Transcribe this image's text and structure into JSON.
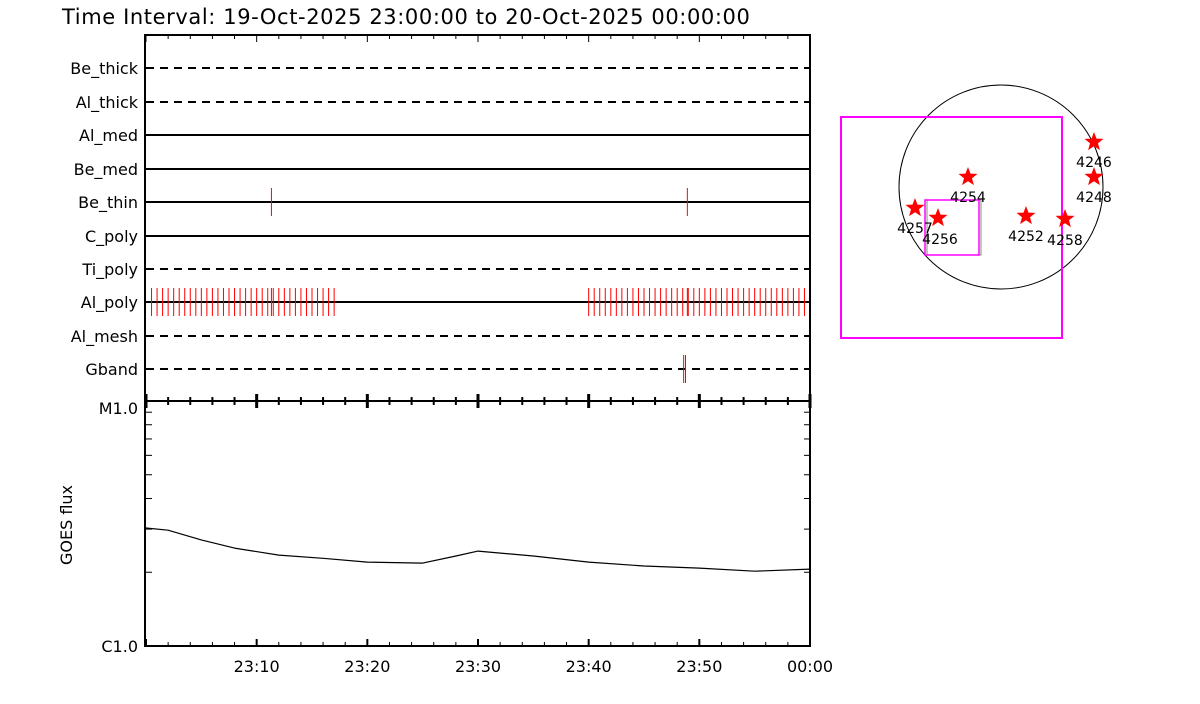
{
  "title": "Time Interval: 19-Oct-2025 23:00:00 to 20-Oct-2025 00:00:00",
  "colors": {
    "marks": "#ff0000",
    "fov": "#ff00ff",
    "axes": "#000000"
  },
  "chart_data": [
    {
      "type": "timeline",
      "x_range": [
        "23:00",
        "00:00"
      ],
      "x_ticks": [
        "23:10",
        "23:20",
        "23:30",
        "23:40",
        "23:50",
        "00:00"
      ],
      "rows": [
        {
          "label": "Be_thick",
          "style": "dashed",
          "marks": []
        },
        {
          "label": "Al_thick",
          "style": "dashed",
          "marks": []
        },
        {
          "label": "Al_med",
          "style": "solid",
          "marks": []
        },
        {
          "label": "Be_med",
          "style": "solid",
          "marks": []
        },
        {
          "label": "Be_thin",
          "style": "solid",
          "marks": [
            "23:11:20",
            "23:48:55"
          ]
        },
        {
          "label": "C_poly",
          "style": "solid",
          "marks": []
        },
        {
          "label": "Ti_poly",
          "style": "dashed",
          "marks": []
        },
        {
          "label": "Al_poly",
          "style": "solid",
          "mark_ranges": [
            [
              "23:00:30",
              "23:17:00"
            ],
            [
              "23:40:00",
              "23:59:30"
            ]
          ],
          "cadence_s": 30,
          "marks": [
            "23:11:20",
            "23:48:55"
          ]
        },
        {
          "label": "Al_mesh",
          "style": "dashed",
          "marks": []
        },
        {
          "label": "Gband",
          "style": "dashed",
          "marks": [
            "23:48:35",
            "23:48:45"
          ]
        }
      ]
    },
    {
      "type": "line",
      "ylabel": "GOES flux",
      "y_scale": "log",
      "ylim": [
        1e-06,
        1e-05
      ],
      "y_tick_labels": [
        "C1.0",
        "M1.0"
      ],
      "x_ticks": [
        "23:10",
        "23:20",
        "23:30",
        "23:40",
        "23:50",
        "00:00"
      ],
      "x": [
        "23:00",
        "23:02",
        "23:05",
        "23:08",
        "23:12",
        "23:16",
        "23:20",
        "23:25",
        "23:28",
        "23:30",
        "23:35",
        "23:40",
        "23:45",
        "23:50",
        "23:55",
        "00:00"
      ],
      "values": [
        3.03e-06,
        2.97e-06,
        2.71e-06,
        2.51e-06,
        2.35e-06,
        2.28e-06,
        2.2e-06,
        2.18e-06,
        2.33e-06,
        2.44e-06,
        2.33e-06,
        2.2e-06,
        2.12e-06,
        2.08e-06,
        2.02e-06,
        2.06e-06
      ]
    },
    {
      "type": "scatter",
      "description_labels": "active regions on solar disk",
      "points": [
        {
          "label": "4246"
        },
        {
          "label": "4248"
        },
        {
          "label": "4254"
        },
        {
          "label": "4257"
        },
        {
          "label": "4256"
        },
        {
          "label": "4252"
        },
        {
          "label": "4258"
        }
      ]
    }
  ]
}
